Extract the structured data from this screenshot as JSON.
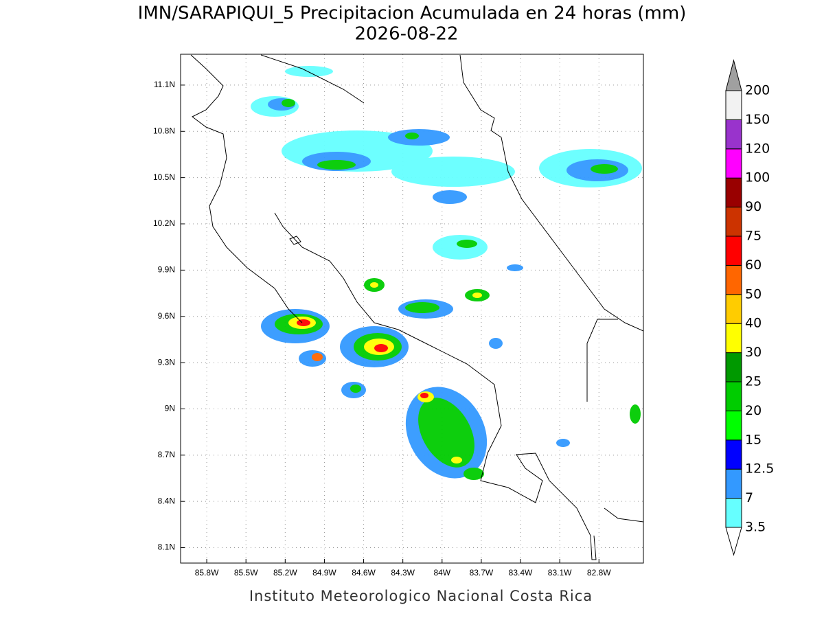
{
  "chart_data": {
    "type": "contour-map",
    "title": "IMN/SARAPIQUI_5 Precipitacion Acumulada en 24 horas (mm)",
    "subtitle": "2026-08-22",
    "footer": "Instituto Meteorologico Nacional Costa Rica",
    "xlim": [
      -86.0,
      -82.46
    ],
    "ylim": [
      8.0,
      11.3
    ],
    "xticks": [
      {
        "value": -85.8,
        "label": "85.8W"
      },
      {
        "value": -85.5,
        "label": "85.5W"
      },
      {
        "value": -85.2,
        "label": "85.2W"
      },
      {
        "value": -84.9,
        "label": "84.9W"
      },
      {
        "value": -84.6,
        "label": "84.6W"
      },
      {
        "value": -84.3,
        "label": "84.3W"
      },
      {
        "value": -84.0,
        "label": "84W"
      },
      {
        "value": -83.7,
        "label": "83.7W"
      },
      {
        "value": -83.4,
        "label": "83.4W"
      },
      {
        "value": -83.1,
        "label": "83.1W"
      },
      {
        "value": -82.8,
        "label": "82.8W"
      }
    ],
    "yticks": [
      {
        "value": 8.1,
        "label": "8.1N"
      },
      {
        "value": 8.4,
        "label": "8.4N"
      },
      {
        "value": 8.7,
        "label": "8.7N"
      },
      {
        "value": 9.0,
        "label": "9N"
      },
      {
        "value": 9.3,
        "label": "9.3N"
      },
      {
        "value": 9.6,
        "label": "9.6N"
      },
      {
        "value": 9.9,
        "label": "9.9N"
      },
      {
        "value": 10.2,
        "label": "10.2N"
      },
      {
        "value": 10.5,
        "label": "10.5N"
      },
      {
        "value": 10.8,
        "label": "10.8N"
      },
      {
        "value": 11.1,
        "label": "11.1N"
      }
    ],
    "grid": true,
    "colorbar": {
      "levels": [
        3.5,
        7,
        12.5,
        15,
        20,
        25,
        30,
        40,
        50,
        60,
        75,
        90,
        100,
        120,
        150,
        200
      ],
      "colors": [
        "#66ffff",
        "#3399ff",
        "#0000ff",
        "#00ff00",
        "#00cc00",
        "#009900",
        "#ffff00",
        "#ffcc00",
        "#ff6600",
        "#ff0000",
        "#cc3300",
        "#990000",
        "#ff00ff",
        "#9933cc",
        "#f2f2f2"
      ],
      "over_color": "#a0a0a0",
      "under_color": "#ffffff"
    }
  }
}
